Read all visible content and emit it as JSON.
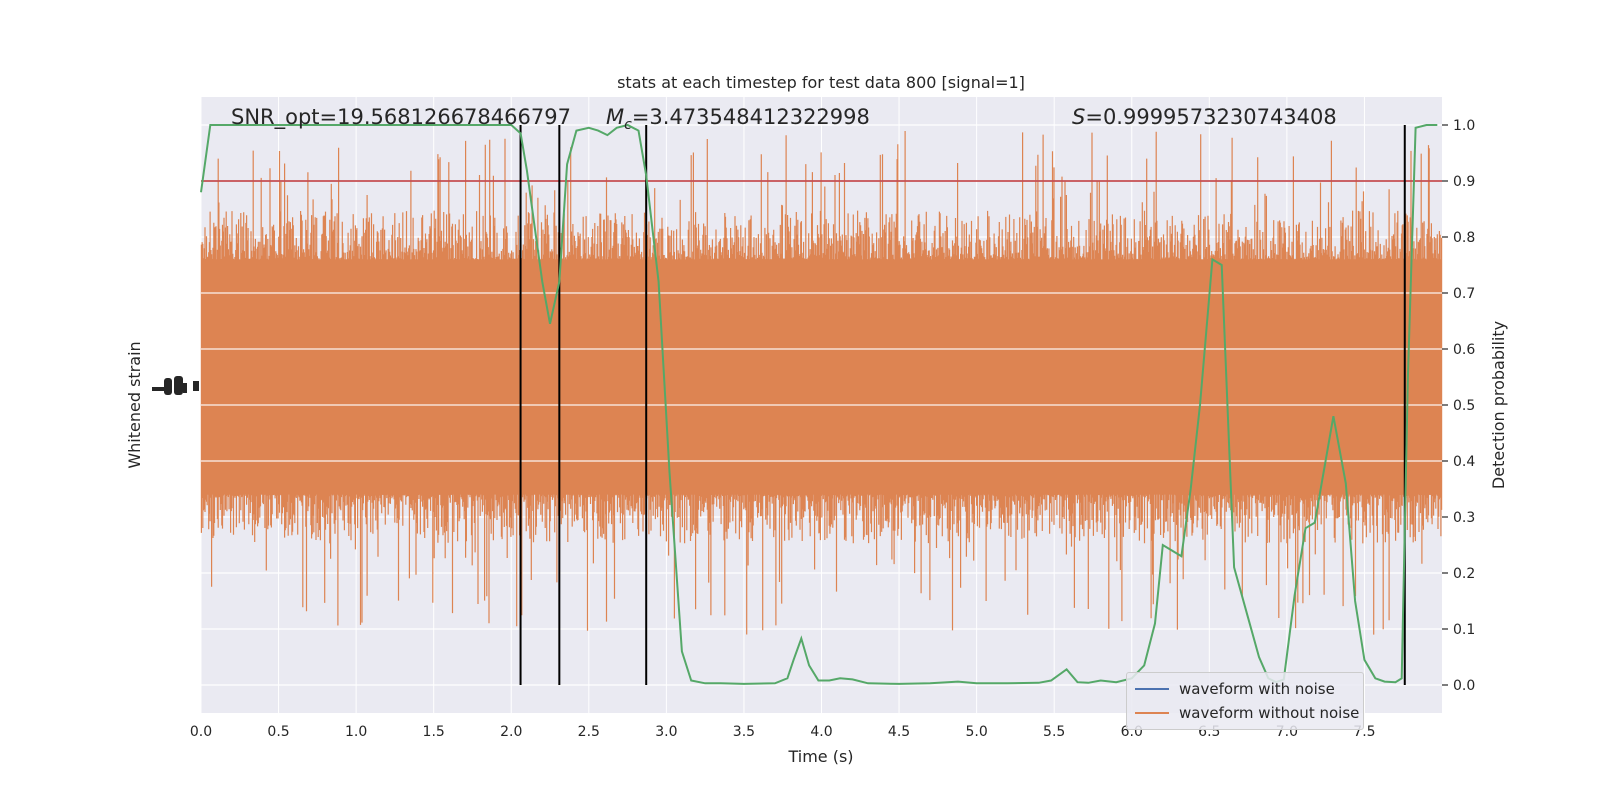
{
  "chart_data": {
    "type": "line",
    "title": "stats at each timestep for test data 800 [signal=1]",
    "xlabel": "Time (s)",
    "ylabel_left": "Whitened strain",
    "ylabel_right": "Detection probability",
    "xlim": [
      0.0,
      8.0
    ],
    "ylim_right": [
      -0.05,
      1.05
    ],
    "x_ticks": [
      "0.0",
      "0.5",
      "1.0",
      "1.5",
      "2.0",
      "2.5",
      "3.0",
      "3.5",
      "4.0",
      "4.5",
      "5.0",
      "5.5",
      "6.0",
      "6.5",
      "7.0",
      "7.5"
    ],
    "x_tick_values": [
      0.0,
      0.5,
      1.0,
      1.5,
      2.0,
      2.5,
      3.0,
      3.5,
      4.0,
      4.5,
      5.0,
      5.5,
      6.0,
      6.5,
      7.0,
      7.5
    ],
    "right_ticks": [
      "0.0",
      "0.1",
      "0.2",
      "0.3",
      "0.4",
      "0.5",
      "0.6",
      "0.7",
      "0.8",
      "0.9",
      "1.0"
    ],
    "right_tick_values": [
      0.0,
      0.1,
      0.2,
      0.3,
      0.4,
      0.5,
      0.6,
      0.7,
      0.8,
      0.9,
      1.0
    ],
    "annotations": {
      "snr": "SNR_opt=19.568126678466797",
      "mc_symbol": "M",
      "mc_sub": "c",
      "mc_value": "=3.473548412322998",
      "s_symbol": "S",
      "s_value": "=0.9999573230743408"
    },
    "threshold": 0.9,
    "vertical_lines_x": [
      2.06,
      2.31,
      2.87,
      7.76
    ],
    "series": [
      {
        "name": "waveform with noise",
        "color": "#4c72b0",
        "x": [],
        "y": []
      },
      {
        "name": "waveform without noise",
        "color": "#dd8452",
        "envelope_core_prob": [
          0.36,
          0.74
        ],
        "envelope_peak_prob": [
          0.08,
          1.0
        ]
      },
      {
        "name": "detection probability",
        "color": "#55a868",
        "x": [
          0.0,
          0.06,
          0.15,
          0.3,
          0.5,
          0.8,
          1.0,
          1.3,
          1.6,
          1.8,
          2.0,
          2.06,
          2.1,
          2.15,
          2.2,
          2.25,
          2.31,
          2.36,
          2.42,
          2.5,
          2.56,
          2.62,
          2.68,
          2.75,
          2.82,
          2.87,
          2.95,
          3.02,
          3.1,
          3.16,
          3.25,
          3.35,
          3.5,
          3.7,
          3.78,
          3.82,
          3.87,
          3.92,
          3.98,
          4.05,
          4.12,
          4.2,
          4.3,
          4.5,
          4.7,
          4.88,
          5.0,
          5.2,
          5.4,
          5.48,
          5.58,
          5.65,
          5.72,
          5.8,
          5.9,
          6.0,
          6.08,
          6.15,
          6.2,
          6.26,
          6.32,
          6.38,
          6.44,
          6.52,
          6.58,
          6.66,
          6.75,
          6.82,
          6.88,
          6.93,
          6.98,
          7.05,
          7.12,
          7.18,
          7.3,
          7.38,
          7.44,
          7.5,
          7.57,
          7.63,
          7.7,
          7.74,
          7.78,
          7.83,
          7.9,
          7.97
        ],
        "y": [
          0.88,
          1.0,
          1.0,
          1.0,
          1.0,
          1.0,
          1.0,
          1.0,
          1.0,
          1.0,
          1.0,
          0.985,
          0.92,
          0.82,
          0.72,
          0.645,
          0.72,
          0.93,
          0.99,
          0.995,
          0.99,
          0.982,
          0.995,
          1.0,
          0.99,
          0.91,
          0.72,
          0.38,
          0.06,
          0.008,
          0.003,
          0.003,
          0.002,
          0.003,
          0.012,
          0.045,
          0.083,
          0.035,
          0.008,
          0.008,
          0.012,
          0.01,
          0.003,
          0.002,
          0.003,
          0.006,
          0.003,
          0.003,
          0.004,
          0.008,
          0.028,
          0.005,
          0.004,
          0.008,
          0.005,
          0.012,
          0.035,
          0.11,
          0.25,
          0.24,
          0.23,
          0.35,
          0.5,
          0.76,
          0.75,
          0.21,
          0.12,
          0.05,
          0.012,
          0.005,
          0.01,
          0.16,
          0.28,
          0.29,
          0.48,
          0.36,
          0.15,
          0.045,
          0.012,
          0.006,
          0.005,
          0.012,
          0.55,
          0.995,
          1.0,
          1.0
        ]
      }
    ],
    "legend_position": "lower-right",
    "grid": true,
    "left_axis_ticks_garbled": true,
    "colors": {
      "plot_background": "#eaeaf2",
      "grid": "#ffffff",
      "threshold_line": "#c44e52",
      "vertical_lines": "#000000"
    }
  }
}
